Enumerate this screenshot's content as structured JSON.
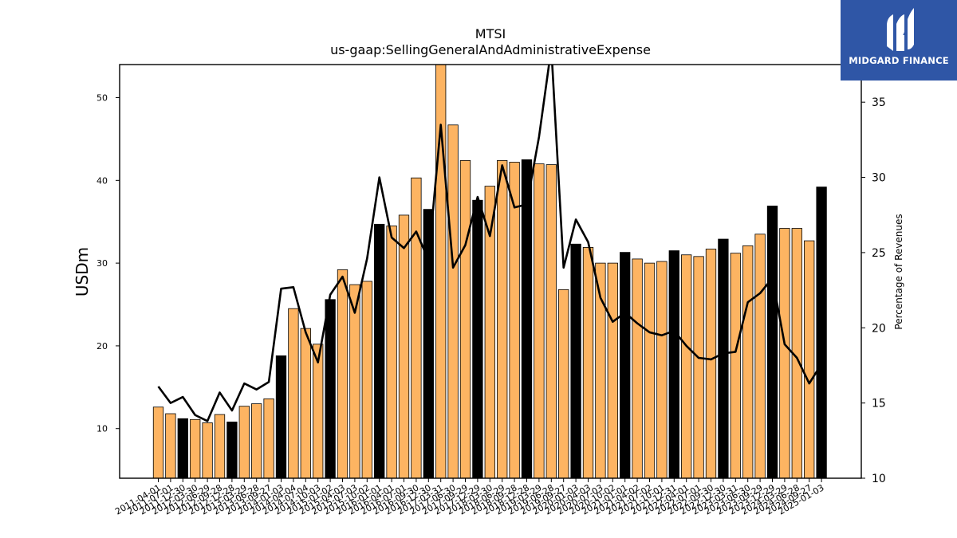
{
  "brand": {
    "name": "MIDGARD FINANCE",
    "color": "#2f56a6",
    "logo_icon": "midgard-logo-icon"
  },
  "chart_data": {
    "type": "bar",
    "title": "MTSI",
    "subtitle": "us-gaap:SellingGeneralAndAdministrativeExpense",
    "ylabel": "USDm",
    "y2label": "Percentage of Revenues",
    "ylim": [
      4,
      54
    ],
    "y2lim": [
      10,
      37.5
    ],
    "yticks": [
      10,
      20,
      30,
      40,
      50
    ],
    "y2ticks": [
      10,
      15,
      20,
      25,
      30,
      35
    ],
    "colors": {
      "quarter": "#fdb462",
      "fiscal_year_end": "#000000",
      "line": "#000000"
    },
    "categories": [
      "2011-04-01",
      "2011-07-01",
      "2011-12-30",
      "2012-03-30",
      "2012-06-29",
      "2012-09-28",
      "2012-12-28",
      "2013-03-29",
      "2013-06-28",
      "2013-09-27",
      "2014-01-03",
      "2014-04-04",
      "2014-07-04",
      "2014-10-03",
      "2015-01-02",
      "2015-04-03",
      "2015-07-03",
      "2015-10-02",
      "2016-01-01",
      "2016-04-01",
      "2016-07-01",
      "2016-09-30",
      "2016-12-30",
      "2017-03-31",
      "2017-06-30",
      "2017-09-29",
      "2017-12-29",
      "2018-03-30",
      "2018-06-29",
      "2018-09-28",
      "2018-12-28",
      "2019-03-29",
      "2019-06-28",
      "2019-09-27",
      "2020-01-03",
      "2020-04-03",
      "2020-07-03",
      "2020-10-02",
      "2021-01-01",
      "2021-04-02",
      "2021-07-02",
      "2021-10-01",
      "2021-12-31",
      "2022-04-01",
      "2022-07-01",
      "2022-09-30",
      "2022-12-30",
      "2023-03-31",
      "2023-06-30",
      "2023-09-29",
      "2023-12-29",
      "2024-03-29",
      "2024-06-28",
      "2024-09-27",
      "2025-01-03"
    ],
    "series": [
      {
        "values": [
          12.6,
          11.8,
          11.2,
          11.1,
          10.7,
          11.7,
          10.8,
          12.7,
          13.0,
          13.6,
          18.8,
          24.5,
          22.1,
          20.2,
          25.6,
          29.2,
          27.4,
          27.8,
          34.7,
          34.5,
          35.8,
          40.3,
          36.5,
          54.5,
          46.7,
          42.4,
          37.6,
          39.3,
          42.4,
          42.2,
          42.5,
          42.0,
          41.9,
          26.8,
          32.3,
          31.9,
          30.0,
          30.0,
          31.3,
          30.5,
          30.0,
          30.2,
          31.5,
          31.0,
          30.8,
          31.7,
          32.9,
          31.2,
          32.1,
          33.5,
          36.9,
          34.2,
          34.2,
          32.7,
          39.2
        ],
        "fiscal_year_end": [
          false,
          false,
          true,
          false,
          false,
          false,
          true,
          false,
          false,
          false,
          true,
          false,
          false,
          false,
          true,
          false,
          false,
          false,
          true,
          false,
          false,
          false,
          true,
          false,
          false,
          false,
          true,
          false,
          false,
          false,
          true,
          false,
          false,
          false,
          true,
          false,
          false,
          false,
          true,
          false,
          false,
          false,
          true,
          false,
          false,
          false,
          true,
          false,
          false,
          false,
          true,
          false,
          false,
          false,
          true
        ]
      },
      {
        "axis": "right",
        "values": [
          16.1,
          15.0,
          15.4,
          14.2,
          13.8,
          15.7,
          14.5,
          16.3,
          15.9,
          16.4,
          22.6,
          22.7,
          19.7,
          17.7,
          22.2,
          23.4,
          21.0,
          24.6,
          30.0,
          26.0,
          25.3,
          26.4,
          24.5,
          33.5,
          24.0,
          25.5,
          28.7,
          26.1,
          30.8,
          28.0,
          28.2,
          32.7,
          38.6,
          24.0,
          27.2,
          25.7,
          22.0,
          20.4,
          21.0,
          20.3,
          19.7,
          19.5,
          19.8,
          18.8,
          18.0,
          17.9,
          18.3,
          18.4,
          21.7,
          22.3,
          23.3,
          18.9,
          18.0,
          16.3,
          17.6
        ]
      }
    ],
    "grid": false,
    "legend": "none"
  }
}
